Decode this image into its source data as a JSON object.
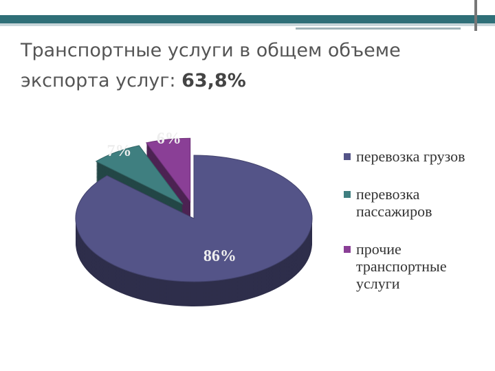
{
  "chart_data": {
    "type": "pie",
    "title": "Транспортные услуги в общем объеме экспорта услуг:",
    "title_figure": "63,8%",
    "categories": [
      "перевозка грузов",
      "перевозка пассажиров",
      "прочие транспортные услуги"
    ],
    "values": [
      86,
      7,
      6
    ],
    "value_labels": [
      "86%",
      "7%",
      "6%"
    ],
    "colors": [
      "#545488",
      "#3f7f80",
      "#8a3f96"
    ],
    "legend": "right"
  }
}
